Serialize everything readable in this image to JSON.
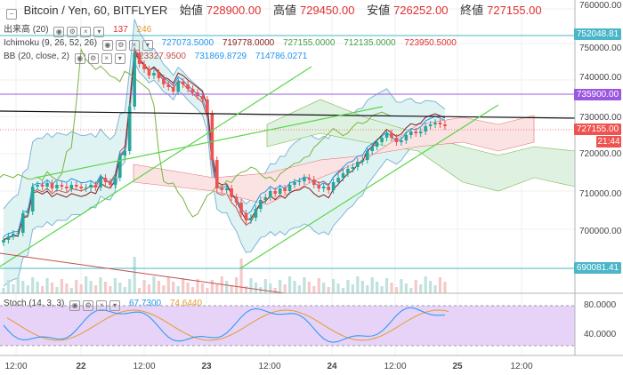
{
  "header": {
    "symbol": "Bitcoin / Yen, 60, BITFLYER",
    "open_label": "始値",
    "open": "728900.00",
    "high_label": "高値",
    "high": "729450.00",
    "low_label": "安値",
    "low": "726252.00",
    "close_label": "終値",
    "close": "727155.00"
  },
  "indicators": {
    "volume": {
      "label": "出来高 (20)",
      "v1": "137",
      "v2": "246"
    },
    "ichimoku": {
      "label": "Ichimoku (9, 26, 52, 26)",
      "values": [
        "727073.5000",
        "719778.0000",
        "727155.0000",
        "712135.0000",
        "723950.5000"
      ]
    },
    "bb": {
      "label": "BB (20, close, 2)",
      "values": [
        "723327.9500",
        "731869.8729",
        "714786.0271"
      ]
    },
    "stoch": {
      "label": "Stoch (14, 3, 3)",
      "k": "67.7300",
      "d": "74.6440"
    }
  },
  "price_axis": {
    "labels": [
      "760000.00",
      "750000.00",
      "740000.00",
      "730000.00",
      "720000.00",
      "710000.00",
      "700000.00"
    ]
  },
  "price_tags": {
    "line1": "752048.81",
    "line2": "735900.00",
    "last": "727155.00",
    "countdown": "21:44",
    "line3": "690081.41"
  },
  "stoch_axis": {
    "labels": [
      "80.0000",
      "40.0000"
    ]
  },
  "time_axis": {
    "labels": [
      "12:00",
      "22",
      "12:00",
      "23",
      "12:00",
      "24",
      "12:00",
      "25",
      "12:00"
    ]
  },
  "colors": {
    "up": "#26a69a",
    "down": "#ef5350",
    "kumo_up": "#dff2e2",
    "kumo_down": "#fbe3e3",
    "stoch_bg": "#e6d3f7",
    "trend": "#5ad64a",
    "hline_blue": "#4ab6c9",
    "hline_purple": "#9b57e0"
  }
}
